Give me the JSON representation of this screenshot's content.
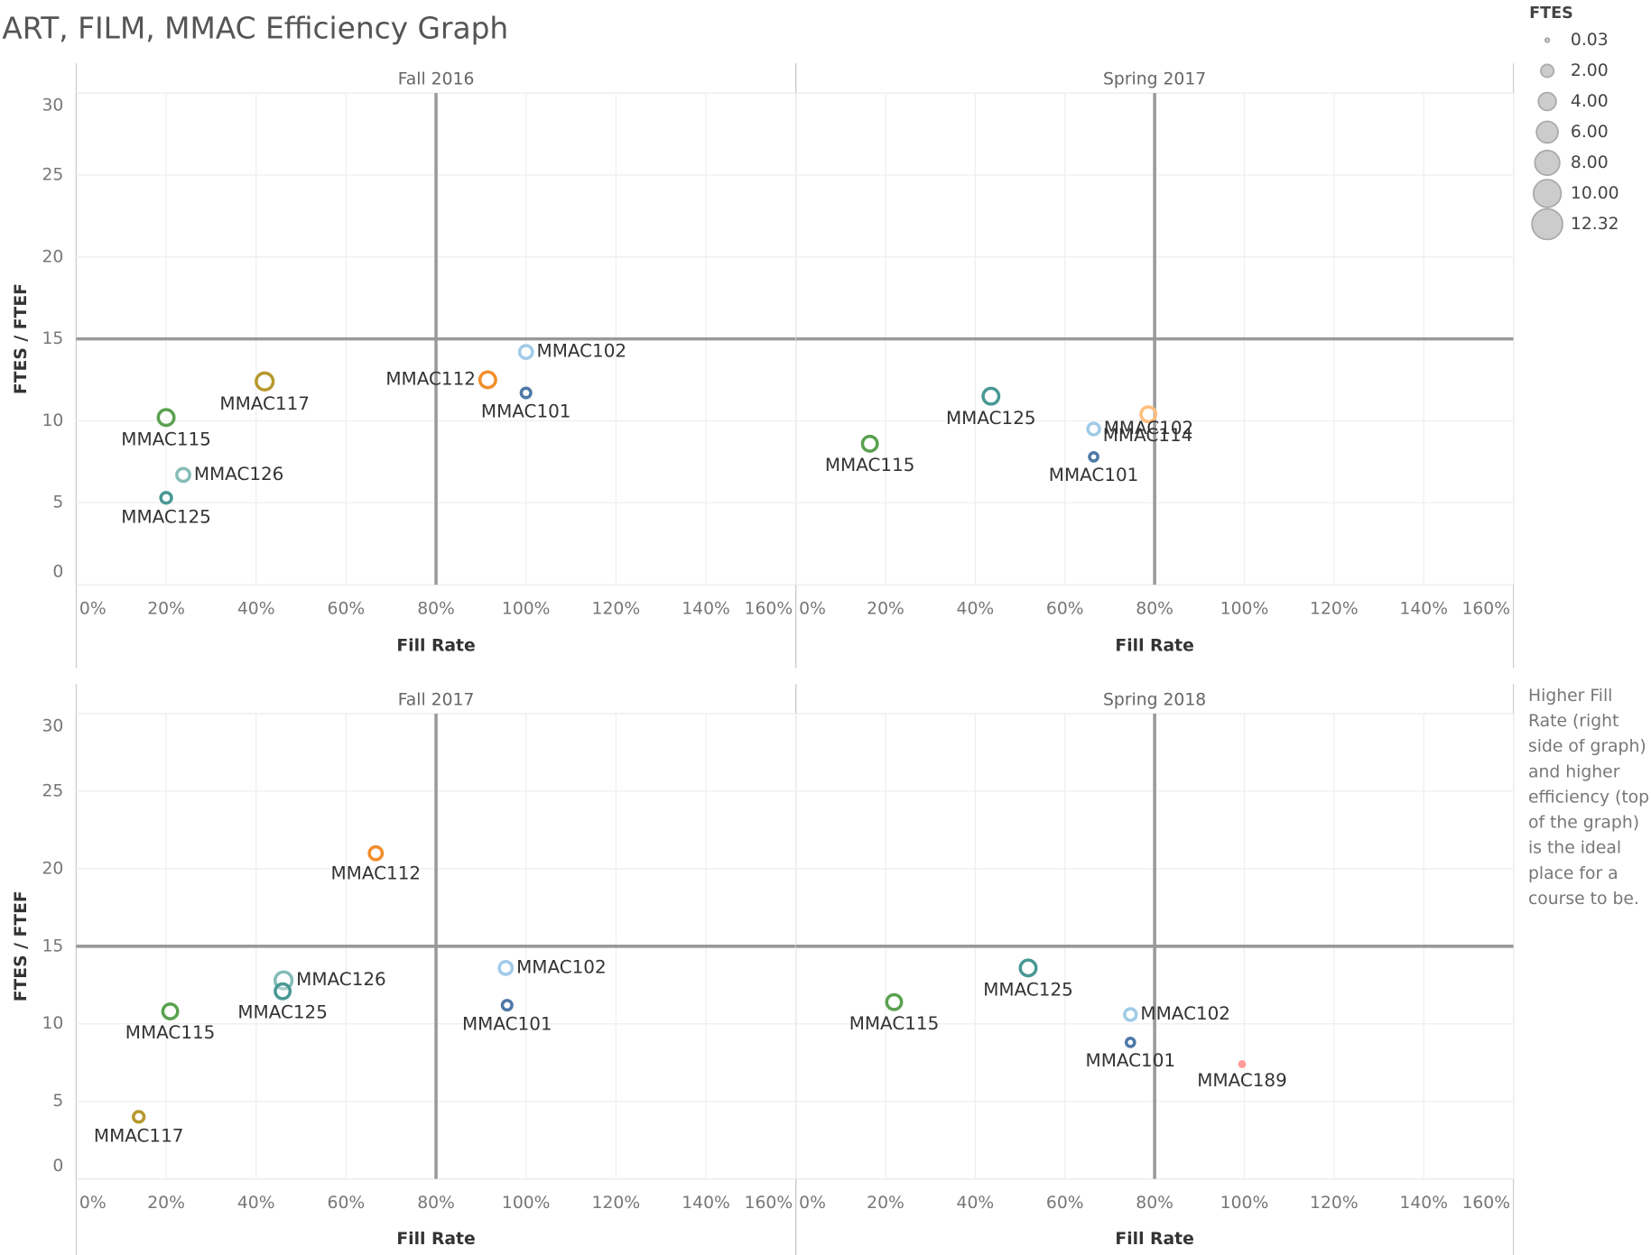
{
  "title": "ART, FILM, MMAC Efficiency Graph",
  "size_legend": {
    "title": "FTES",
    "values": [
      {
        "value": 0.03,
        "label": "0.03"
      },
      {
        "value": 2,
        "label": "2.00"
      },
      {
        "value": 4,
        "label": "4.00"
      },
      {
        "value": 6,
        "label": "6.00"
      },
      {
        "value": 8,
        "label": "8.00"
      },
      {
        "value": 10,
        "label": "10.00"
      },
      {
        "value": 12.32,
        "label": "12.32"
      }
    ]
  },
  "annotation": "Higher Fill Rate (right side of graph) and higher efficiency (top of the graph) is the ideal place for a course to be.",
  "chart_data": [
    {
      "type": "scatter",
      "title": "Fall 2016",
      "xlabel": "Fill Rate",
      "ylabel": "FTES / FTEF",
      "xlim": [
        0,
        160
      ],
      "ylim": [
        0,
        30
      ],
      "xticks": [
        {
          "value": 0,
          "label": "0%"
        },
        {
          "value": 20,
          "label": "20%"
        },
        {
          "value": 40,
          "label": "40%"
        },
        {
          "value": 60,
          "label": "60%"
        },
        {
          "value": 80,
          "label": "80%"
        },
        {
          "value": 100,
          "label": "100%"
        },
        {
          "value": 120,
          "label": "120%"
        },
        {
          "value": 140,
          "label": "140%"
        },
        {
          "value": 160,
          "label": "160%"
        }
      ],
      "yticks": [
        0,
        5,
        10,
        15,
        20,
        25,
        30
      ],
      "reference_lines": {
        "x": 80,
        "y": 15
      },
      "series": [
        {
          "name": "MMAC102",
          "color": "#a0cbe8",
          "x": [
            100
          ],
          "values": [
            14.2
          ],
          "sizes": [
            2
          ]
        },
        {
          "name": "MMAC112",
          "color": "#f28e2b",
          "x": [
            91.5
          ],
          "values": [
            12.5
          ],
          "sizes": [
            3.1
          ]
        },
        {
          "name": "MMAC101",
          "color": "#4e79a7",
          "x": [
            100
          ],
          "values": [
            11.7
          ],
          "sizes": [
            1
          ]
        },
        {
          "name": "MMAC117",
          "color": "#b6992d",
          "x": [
            41.9
          ],
          "values": [
            12.4
          ],
          "sizes": [
            3.6
          ]
        },
        {
          "name": "MMAC115",
          "color": "#59a14f",
          "x": [
            20
          ],
          "values": [
            10.2
          ],
          "sizes": [
            3.1
          ]
        },
        {
          "name": "MMAC126",
          "color": "#86bcb6",
          "x": [
            23.8
          ],
          "values": [
            6.7
          ],
          "sizes": [
            2
          ]
        },
        {
          "name": "MMAC125",
          "color": "#499894",
          "x": [
            20
          ],
          "values": [
            5.3
          ],
          "sizes": [
            1.3
          ]
        }
      ]
    },
    {
      "type": "scatter",
      "title": "Spring 2017",
      "xlabel": "Fill Rate",
      "xlim": [
        0,
        160
      ],
      "ylim": [
        0,
        30
      ],
      "xticks": [
        {
          "value": 0,
          "label": "0%"
        },
        {
          "value": 20,
          "label": "20%"
        },
        {
          "value": 40,
          "label": "40%"
        },
        {
          "value": 60,
          "label": "60%"
        },
        {
          "value": 80,
          "label": "80%"
        },
        {
          "value": 100,
          "label": "100%"
        },
        {
          "value": 120,
          "label": "120%"
        },
        {
          "value": 140,
          "label": "140%"
        },
        {
          "value": 160,
          "label": "160%"
        }
      ],
      "yticks": [
        0,
        5,
        10,
        15,
        20,
        25,
        30
      ],
      "reference_lines": {
        "x": 80,
        "y": 15
      },
      "series": [
        {
          "name": "MMAC115",
          "color": "#59a14f",
          "x": [
            16.5
          ],
          "values": [
            8.6
          ],
          "sizes": [
            2.7
          ]
        },
        {
          "name": "MMAC125",
          "color": "#499894",
          "x": [
            43.5
          ],
          "values": [
            11.5
          ],
          "sizes": [
            3.1
          ]
        },
        {
          "name": "MMAC114",
          "color": "#ffbe7d",
          "x": [
            78.6
          ],
          "values": [
            10.4
          ],
          "sizes": [
            2.7
          ]
        },
        {
          "name": "MMAC102",
          "color": "#a0cbe8",
          "x": [
            66.4
          ],
          "values": [
            9.5
          ],
          "sizes": [
            1.6
          ]
        },
        {
          "name": "MMAC101",
          "color": "#4e79a7",
          "x": [
            66.4
          ],
          "values": [
            7.8
          ],
          "sizes": [
            0.7
          ]
        }
      ]
    },
    {
      "type": "scatter",
      "title": "Fall 2017",
      "xlabel": "Fill Rate",
      "ylabel": "FTES / FTEF",
      "xlim": [
        0,
        160
      ],
      "ylim": [
        0,
        30
      ],
      "xticks": [
        {
          "value": 0,
          "label": "0%"
        },
        {
          "value": 20,
          "label": "20%"
        },
        {
          "value": 40,
          "label": "40%"
        },
        {
          "value": 60,
          "label": "60%"
        },
        {
          "value": 80,
          "label": "80%"
        },
        {
          "value": 100,
          "label": "100%"
        },
        {
          "value": 120,
          "label": "120%"
        },
        {
          "value": 140,
          "label": "140%"
        },
        {
          "value": 160,
          "label": "160%"
        }
      ],
      "yticks": [
        0,
        5,
        10,
        15,
        20,
        25,
        30
      ],
      "reference_lines": {
        "x": 80,
        "y": 15
      },
      "series": [
        {
          "name": "MMAC112",
          "color": "#f28e2b",
          "x": [
            66.6
          ],
          "values": [
            21.0
          ],
          "sizes": [
            2
          ]
        },
        {
          "name": "MMAC102",
          "color": "#a0cbe8",
          "x": [
            95.5
          ],
          "values": [
            13.6
          ],
          "sizes": [
            2
          ]
        },
        {
          "name": "MMAC101",
          "color": "#4e79a7",
          "x": [
            95.8
          ],
          "values": [
            11.2
          ],
          "sizes": [
            1
          ]
        },
        {
          "name": "MMAC126",
          "color": "#86bcb6",
          "x": [
            46.1
          ],
          "values": [
            12.8
          ],
          "sizes": [
            3.6
          ]
        },
        {
          "name": "MMAC125",
          "color": "#499894",
          "x": [
            45.9
          ],
          "values": [
            12.1
          ],
          "sizes": [
            2.7
          ]
        },
        {
          "name": "MMAC115",
          "color": "#59a14f",
          "x": [
            20.9
          ],
          "values": [
            10.8
          ],
          "sizes": [
            2.7
          ]
        },
        {
          "name": "MMAC117",
          "color": "#b6992d",
          "x": [
            13.9
          ],
          "values": [
            4.0
          ],
          "sizes": [
            1.3
          ]
        }
      ]
    },
    {
      "type": "scatter",
      "title": "Spring 2018",
      "xlabel": "Fill Rate",
      "xlim": [
        0,
        160
      ],
      "ylim": [
        0,
        30
      ],
      "xticks": [
        {
          "value": 0,
          "label": "0%"
        },
        {
          "value": 20,
          "label": "20%"
        },
        {
          "value": 40,
          "label": "40%"
        },
        {
          "value": 60,
          "label": "60%"
        },
        {
          "value": 80,
          "label": "80%"
        },
        {
          "value": 100,
          "label": "100%"
        },
        {
          "value": 120,
          "label": "120%"
        },
        {
          "value": 140,
          "label": "140%"
        },
        {
          "value": 160,
          "label": "160%"
        }
      ],
      "yticks": [
        0,
        5,
        10,
        15,
        20,
        25,
        30
      ],
      "reference_lines": {
        "x": 80,
        "y": 15
      },
      "series": [
        {
          "name": "MMAC125",
          "color": "#499894",
          "x": [
            51.8
          ],
          "values": [
            13.6
          ],
          "sizes": [
            3.1
          ]
        },
        {
          "name": "MMAC115",
          "color": "#59a14f",
          "x": [
            21.9
          ],
          "values": [
            11.4
          ],
          "sizes": [
            2.7
          ]
        },
        {
          "name": "MMAC102",
          "color": "#a0cbe8",
          "x": [
            74.6
          ],
          "values": [
            10.6
          ],
          "sizes": [
            1.6
          ]
        },
        {
          "name": "MMAC101",
          "color": "#4e79a7",
          "x": [
            74.6
          ],
          "values": [
            8.8
          ],
          "sizes": [
            0.7
          ]
        },
        {
          "name": "MMAC189",
          "color": "#ff9d9a",
          "x": [
            99.5
          ],
          "values": [
            7.4
          ],
          "sizes": [
            0.1
          ]
        }
      ]
    }
  ]
}
